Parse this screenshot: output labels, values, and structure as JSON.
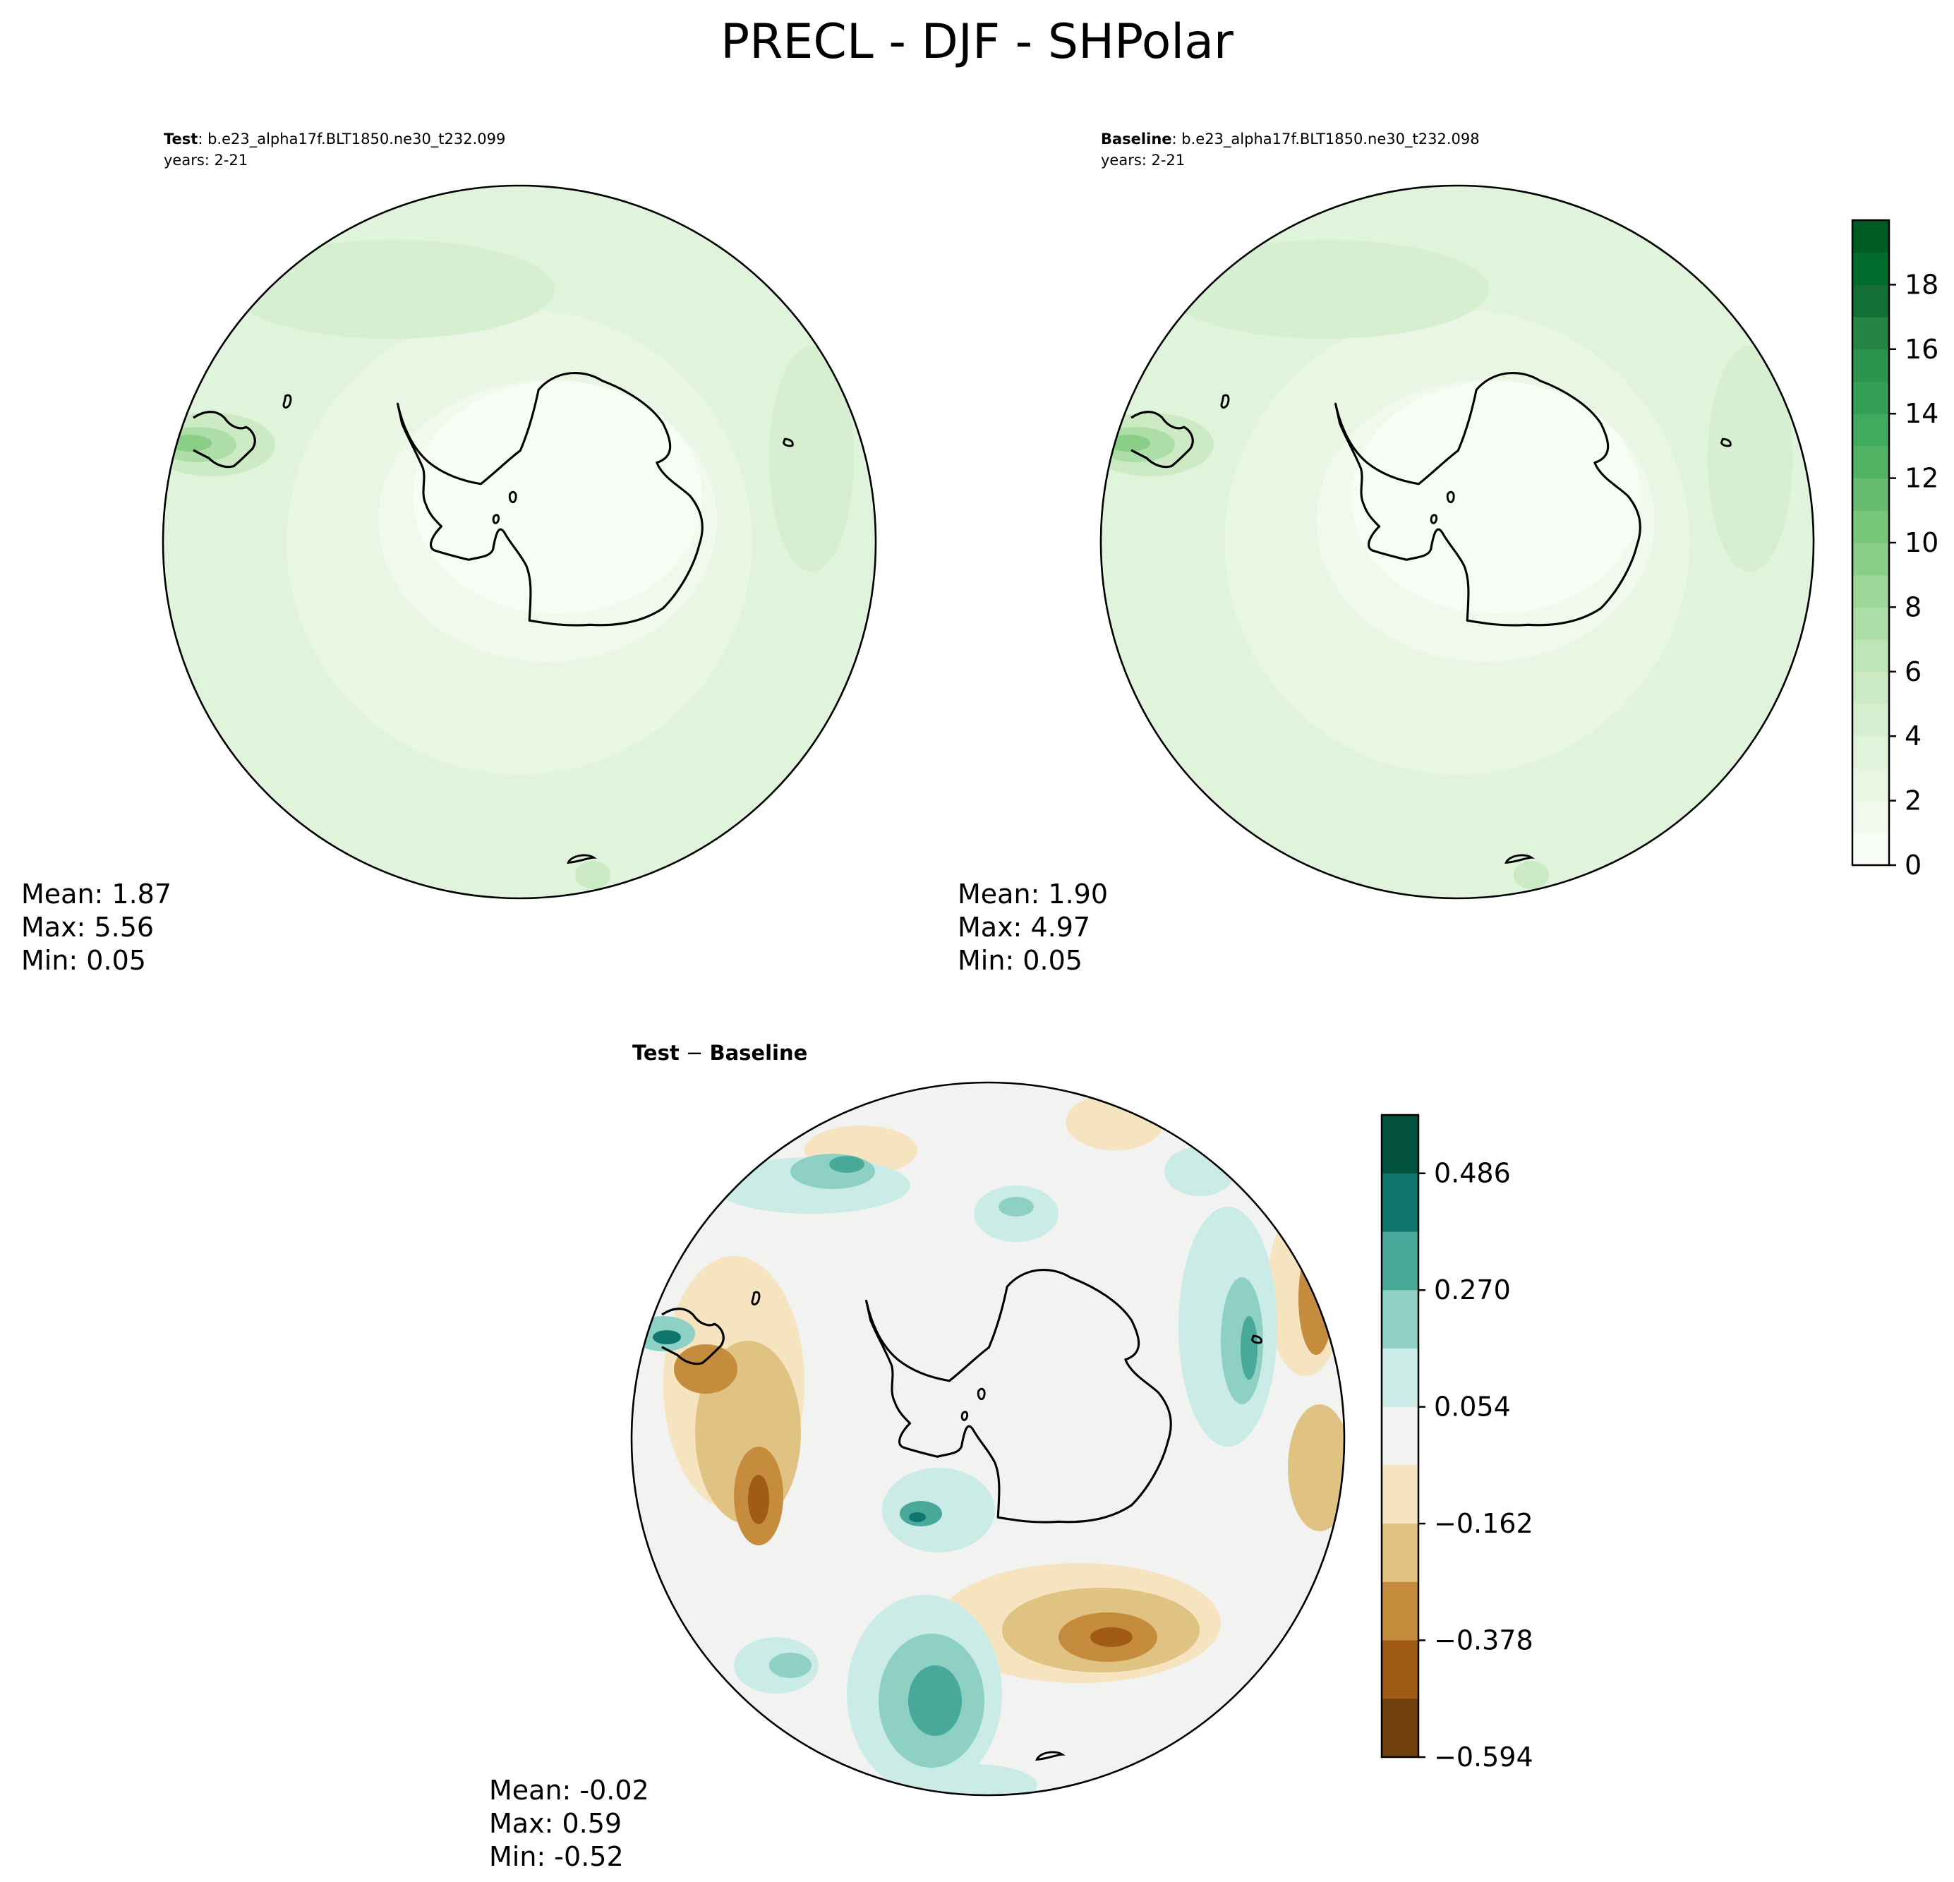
{
  "figure": {
    "title": "PRECL - DJF - SHPolar"
  },
  "panels": {
    "test": {
      "label_bold": "Test",
      "label_rest": ": b.e23_alpha17f.BLT1850.ne30_t232.099",
      "years": "years: 2-21",
      "stats": {
        "mean": "Mean:  1.87",
        "max": "Max:  5.56",
        "min": "Min:  0.05"
      }
    },
    "baseline": {
      "label_bold": "Baseline",
      "label_rest": ": b.e23_alpha17f.BLT1850.ne30_t232.098",
      "years": "years: 2-21",
      "stats": {
        "mean": "Mean:  1.90",
        "max": "Max:  4.97",
        "min": "Min:  0.05"
      }
    },
    "diff": {
      "label_left": "Test",
      "label_sep": " − ",
      "label_right": "Baseline",
      "stats": {
        "mean": "Mean: -0.02",
        "max": "Max:  0.59",
        "min": "Min: -0.52"
      }
    }
  },
  "colorbars": {
    "abs": {
      "ticks": [
        "0",
        "2",
        "4",
        "6",
        "8",
        "10",
        "12",
        "14",
        "16",
        "18"
      ],
      "colors": [
        "#f7fcf5",
        "#f0f9ec",
        "#e8f6e3",
        "#e0f3db",
        "#d6efd0",
        "#ccebc5",
        "#bde5b7",
        "#aedea7",
        "#9dd697",
        "#8ace88",
        "#78c679",
        "#66bd6f",
        "#52b365",
        "#41ab5d",
        "#34a055",
        "#2b944c",
        "#238443",
        "#157036",
        "#006d2c",
        "#005a24"
      ]
    },
    "diff": {
      "ticks": [
        "0.486",
        "0.270",
        "0.054",
        "−0.162",
        "−0.378",
        "−0.594"
      ],
      "colors_top_to_bottom": [
        "#01513d",
        "#0f766d",
        "#48a89a",
        "#8ed1c4",
        "#cbece6",
        "#f2f3f1",
        "#f5e4bf",
        "#e0c283",
        "#c58c3e",
        "#a05c16",
        "#70410b"
      ]
    }
  }
}
